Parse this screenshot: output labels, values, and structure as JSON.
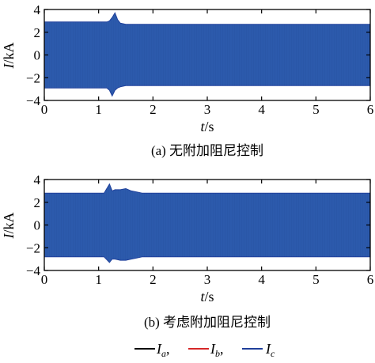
{
  "chart_data": [
    {
      "type": "line",
      "title": "(a) 无附加阻尼控制",
      "xlabel_var": "t",
      "xlabel_unit": "/s",
      "ylabel_var": "I",
      "ylabel_unit": "/kA",
      "xlim": [
        0,
        6
      ],
      "ylim": [
        -4,
        4
      ],
      "xticks": [
        "0",
        "1",
        "2",
        "3",
        "4",
        "5",
        "6"
      ],
      "yticks": [
        "4",
        "2",
        "0",
        "−2",
        "−4"
      ],
      "envelope": {
        "t": [
          0,
          1.1,
          1.15,
          1.2,
          1.25,
          1.3,
          1.35,
          1.4,
          1.5,
          1.7,
          6
        ],
        "upper": [
          2.9,
          2.9,
          2.9,
          3.0,
          3.3,
          3.7,
          3.1,
          2.8,
          2.7,
          2.7,
          2.7
        ],
        "lower": [
          -2.9,
          -2.9,
          -2.9,
          -3.1,
          -3.6,
          -3.1,
          -2.9,
          -2.8,
          -2.7,
          -2.7,
          -2.7
        ]
      },
      "grid": false
    },
    {
      "type": "line",
      "title": "(b) 考虑附加阻尼控制",
      "xlabel_var": "t",
      "xlabel_unit": "/s",
      "ylabel_var": "I",
      "ylabel_unit": "/kA",
      "xlim": [
        0,
        6
      ],
      "ylim": [
        -4,
        4
      ],
      "xticks": [
        "0",
        "1",
        "2",
        "3",
        "4",
        "5",
        "6"
      ],
      "yticks": [
        "4",
        "2",
        "0",
        "−2",
        "−4"
      ],
      "envelope": {
        "t": [
          0,
          1.1,
          1.2,
          1.25,
          1.3,
          1.4,
          1.5,
          1.6,
          1.7,
          1.8,
          2.0,
          6
        ],
        "upper": [
          2.8,
          2.8,
          3.6,
          3.0,
          3.1,
          3.1,
          3.2,
          3.0,
          2.9,
          2.8,
          2.8,
          2.8
        ],
        "lower": [
          -2.8,
          -2.8,
          -3.3,
          -3.0,
          -3.0,
          -3.1,
          -3.1,
          -3.0,
          -2.9,
          -2.8,
          -2.8,
          -2.8
        ]
      },
      "grid": false
    }
  ],
  "legend": [
    {
      "var": "I",
      "sub": "a",
      "sep": ",",
      "color": "#000000"
    },
    {
      "var": "I",
      "sub": "b",
      "sep": ",",
      "color": "#d62728"
    },
    {
      "var": "I",
      "sub": "c",
      "sep": "",
      "color": "#1f3f9a"
    }
  ],
  "colors": {
    "fill": "#2a57a8",
    "edge": "#1f3f9a",
    "spike_red": "#d62728"
  }
}
